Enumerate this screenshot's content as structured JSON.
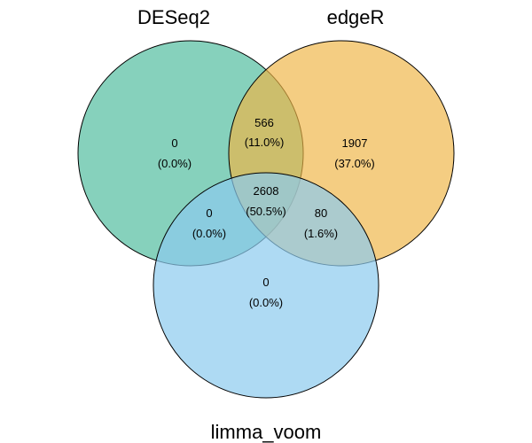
{
  "sets": [
    {
      "key": "deseq2",
      "name": "DESeq2",
      "color": "#5DC1A5"
    },
    {
      "key": "edger",
      "name": "edgeR",
      "color": "#EEB444"
    },
    {
      "key": "limma_voom",
      "name": "limma_voom",
      "color": "#8CCBEE"
    }
  ],
  "regions": {
    "deseq2_only": {
      "count": "0",
      "percent": "(0.0%)"
    },
    "edger_only": {
      "count": "1907",
      "percent": "(37.0%)"
    },
    "limma_only": {
      "count": "0",
      "percent": "(0.0%)"
    },
    "deseq2_edger": {
      "count": "566",
      "percent": "(11.0%)"
    },
    "deseq2_limma": {
      "count": "0",
      "percent": "(0.0%)"
    },
    "edger_limma": {
      "count": "80",
      "percent": "(1.6%)"
    },
    "all_three": {
      "count": "2608",
      "percent": "(50.5%)"
    }
  }
}
